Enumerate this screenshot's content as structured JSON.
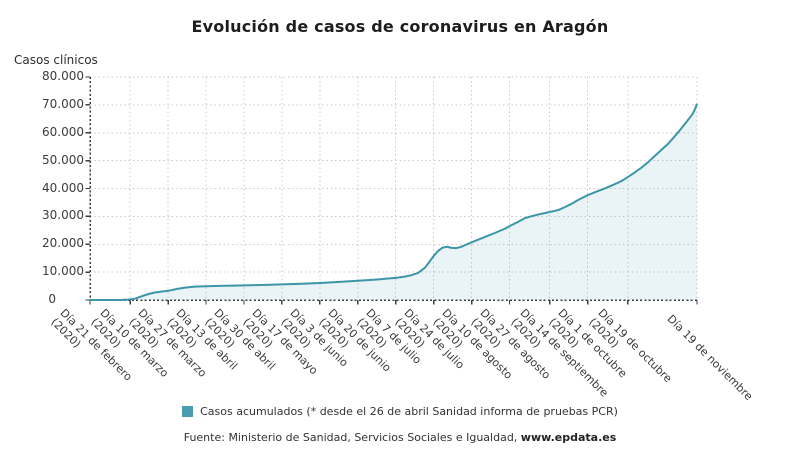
{
  "title": "Evolución de casos de coronavirus en Aragón",
  "y_axis_title": "Casos clínicos",
  "legend": {
    "marker_color": "#4a9cb0",
    "label": "Casos acumulados (* desde el 26 de abril Sanidad informa de pruebas PCR)"
  },
  "source": {
    "prefix": "Fuente: Ministerio de Sanidad, Servicios Sociales e Igualdad, ",
    "brand": "www.epdata.es"
  },
  "chart_data": {
    "type": "area",
    "title": "Evolución de casos de coronavirus en Aragón",
    "ylabel": "Casos clínicos",
    "ylim": [
      0,
      80000
    ],
    "x_range_days": 272,
    "grid": true,
    "legend_position": "bottom",
    "colors": {
      "line": "#3c96a8",
      "fill": "rgba(60,150,168,0.11)",
      "grid": "#c9c9c9",
      "axis": "#3d3d3d"
    },
    "y_ticks": [
      {
        "value": 0,
        "label": "0"
      },
      {
        "value": 10000,
        "label": "10.000"
      },
      {
        "value": 20000,
        "label": "20.000"
      },
      {
        "value": 30000,
        "label": "30.000"
      },
      {
        "value": 40000,
        "label": "40.000"
      },
      {
        "value": 50000,
        "label": "50.000"
      },
      {
        "value": 60000,
        "label": "60.000"
      },
      {
        "value": 70000,
        "label": "70.000"
      },
      {
        "value": 80000,
        "label": "80.000"
      }
    ],
    "x_ticks": [
      {
        "day": 0,
        "label": "Día 21 de febrero",
        "year": "(2020)"
      },
      {
        "day": 18,
        "label": "Día 10 de marzo",
        "year": "(2020)"
      },
      {
        "day": 35,
        "label": "Día 27 de marzo",
        "year": "(2020)"
      },
      {
        "day": 52,
        "label": "Día 13 de abril",
        "year": "(2020)"
      },
      {
        "day": 69,
        "label": "Día 30 de abril",
        "year": "(2020)"
      },
      {
        "day": 86,
        "label": "Día 17 de mayo",
        "year": "(2020)"
      },
      {
        "day": 103,
        "label": "Día 3 de junio",
        "year": "(2020)"
      },
      {
        "day": 120,
        "label": "Día 20 de junio",
        "year": "(2020)"
      },
      {
        "day": 137,
        "label": "Día 7 de julio",
        "year": "(2020)"
      },
      {
        "day": 154,
        "label": "Día 24 de julio",
        "year": "(2020)"
      },
      {
        "day": 171,
        "label": "Día 10 de agosto",
        "year": "(2020)"
      },
      {
        "day": 188,
        "label": "Día 27 de agosto",
        "year": "(2020)"
      },
      {
        "day": 206,
        "label": "Día 14 de septiembre",
        "year": "(2020)"
      },
      {
        "day": 223,
        "label": "Día 1 de octubre",
        "year": "(2020)"
      },
      {
        "day": 241,
        "label": "Día 19 de octubre",
        "year": "(2020)"
      },
      {
        "day": 272,
        "label": "Día 19 de noviembre",
        "year": ""
      }
    ],
    "series": [
      {
        "name": "Casos acumulados",
        "points": [
          [
            0,
            0
          ],
          [
            6,
            1
          ],
          [
            10,
            10
          ],
          [
            14,
            40
          ],
          [
            17,
            120
          ],
          [
            19,
            300
          ],
          [
            21,
            700
          ],
          [
            23,
            1300
          ],
          [
            26,
            2100
          ],
          [
            29,
            2700
          ],
          [
            32,
            3000
          ],
          [
            35,
            3300
          ],
          [
            39,
            4000
          ],
          [
            43,
            4500
          ],
          [
            47,
            4800
          ],
          [
            52,
            4950
          ],
          [
            58,
            5080
          ],
          [
            64,
            5170
          ],
          [
            69,
            5250
          ],
          [
            77,
            5400
          ],
          [
            86,
            5600
          ],
          [
            95,
            5850
          ],
          [
            103,
            6100
          ],
          [
            111,
            6450
          ],
          [
            120,
            6900
          ],
          [
            127,
            7250
          ],
          [
            133,
            7650
          ],
          [
            137,
            7950
          ],
          [
            141,
            8400
          ],
          [
            144,
            8900
          ],
          [
            147,
            9700
          ],
          [
            150,
            11500
          ],
          [
            152,
            13600
          ],
          [
            154,
            15800
          ],
          [
            156,
            17600
          ],
          [
            158,
            18800
          ],
          [
            160,
            19100
          ],
          [
            162,
            18700
          ],
          [
            164,
            18600
          ],
          [
            166,
            19000
          ],
          [
            169,
            20000
          ],
          [
            171,
            20700
          ],
          [
            176,
            22300
          ],
          [
            181,
            23900
          ],
          [
            186,
            25600
          ],
          [
            188,
            26500
          ],
          [
            192,
            28100
          ],
          [
            195,
            29400
          ],
          [
            198,
            30100
          ],
          [
            201,
            30700
          ],
          [
            204,
            31200
          ],
          [
            206,
            31600
          ],
          [
            208,
            31900
          ],
          [
            210,
            32300
          ],
          [
            213,
            33400
          ],
          [
            216,
            34600
          ],
          [
            219,
            36000
          ],
          [
            223,
            37600
          ],
          [
            227,
            38900
          ],
          [
            231,
            40100
          ],
          [
            235,
            41500
          ],
          [
            238,
            42600
          ],
          [
            241,
            44100
          ],
          [
            244,
            45700
          ],
          [
            247,
            47400
          ],
          [
            250,
            49400
          ],
          [
            253,
            51600
          ],
          [
            256,
            53800
          ],
          [
            259,
            56000
          ],
          [
            262,
            58700
          ],
          [
            264,
            60600
          ],
          [
            266,
            62600
          ],
          [
            268,
            64600
          ],
          [
            270,
            66700
          ],
          [
            271,
            68300
          ],
          [
            272,
            70400
          ]
        ]
      }
    ]
  }
}
